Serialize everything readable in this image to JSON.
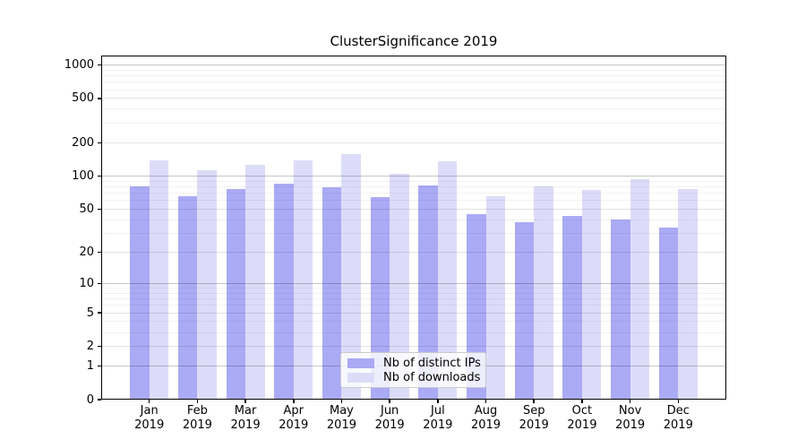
{
  "chart_data": {
    "type": "bar",
    "title": "ClusterSignificance 2019",
    "months": [
      "Jan",
      "Feb",
      "Mar",
      "Apr",
      "May",
      "Jun",
      "Jul",
      "Aug",
      "Sep",
      "Oct",
      "Nov",
      "Dec"
    ],
    "year": "2019",
    "series": [
      {
        "name": "Nb of distinct IPs",
        "color": "#aaaaf5",
        "values": [
          81,
          66,
          76,
          86,
          79,
          64,
          82,
          45,
          38,
          43,
          40,
          34
        ]
      },
      {
        "name": "Nb of downloads",
        "color": "#dcdcf9",
        "values": [
          138,
          112,
          126,
          139,
          158,
          104,
          136,
          66,
          80,
          75,
          94,
          76
        ]
      }
    ],
    "yscale": "log10(v+1)",
    "ylim": [
      0,
      1200
    ],
    "yticks_major": [
      0,
      1,
      2,
      5,
      10,
      20,
      50,
      100,
      200,
      500,
      1000
    ],
    "yticks_minor": [
      3,
      4,
      6,
      7,
      8,
      9,
      30,
      40,
      60,
      70,
      80,
      90,
      300,
      400,
      600,
      700,
      800,
      900
    ],
    "emphasized_gridlines": [
      1,
      10,
      100,
      1000
    ],
    "grid": true,
    "legend_position": "lower-center",
    "axis_color": "#000000",
    "background_color": "#ffffff"
  }
}
